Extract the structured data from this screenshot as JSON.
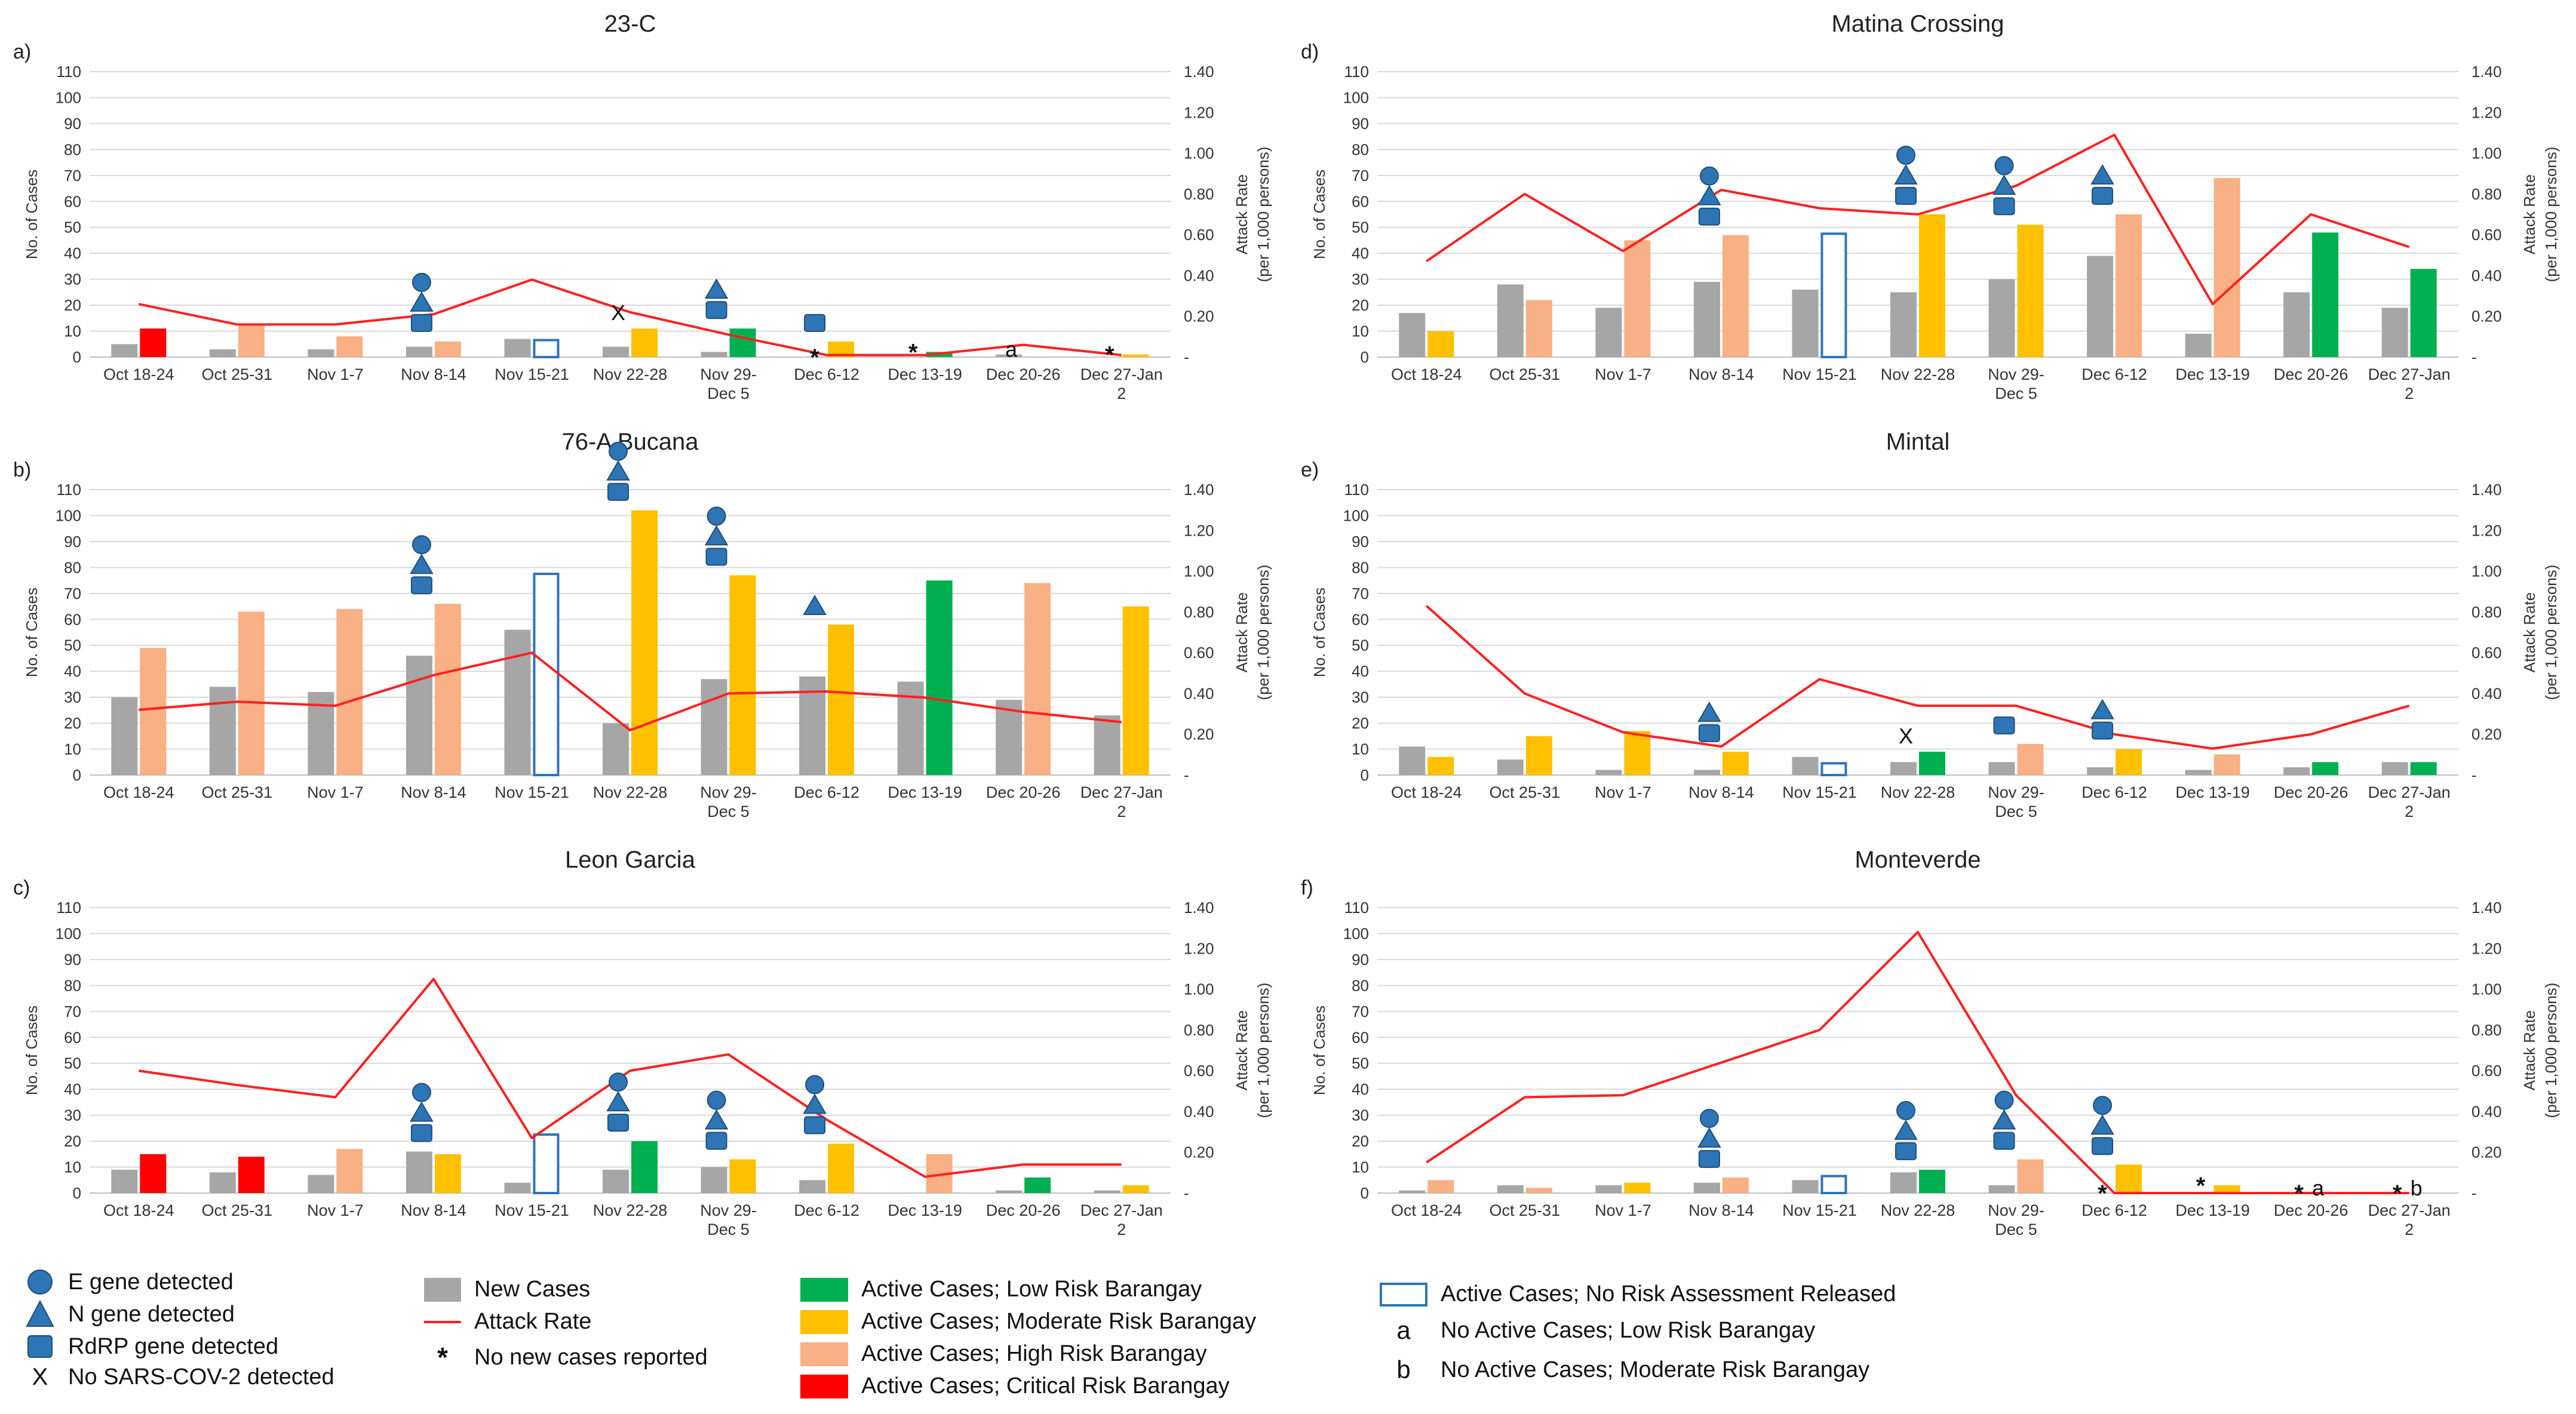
{
  "colors": {
    "new": "#a6a6a6",
    "low": "#00b050",
    "moderate": "#ffc000",
    "high": "#f8b084",
    "critical": "#ff0000",
    "norisk_stroke": "#2e75b6",
    "attack": "#ff2020",
    "marker": "#2e75b6",
    "grid": "#d9d9d9"
  },
  "categories": [
    "Oct 18-24",
    "Oct 25-31",
    "Nov 1-7",
    "Nov 8-14",
    "Nov 15-21",
    "Nov 22-28",
    "Nov 29-Dec 5",
    "Dec 6-12",
    "Dec 13-19",
    "Dec 20-26",
    "Dec 27-Jan 2"
  ],
  "category_lines": [
    [
      "Oct 18-24"
    ],
    [
      "Oct 25-31"
    ],
    [
      "Nov 1-7"
    ],
    [
      "Nov 8-14"
    ],
    [
      "Nov 15-21"
    ],
    [
      "Nov 22-28"
    ],
    [
      "Nov 29-",
      "Dec 5"
    ],
    [
      "Dec 6-12"
    ],
    [
      "Dec 13-19"
    ],
    [
      "Dec 20-26"
    ],
    [
      "Dec 27-Jan",
      "2"
    ]
  ],
  "left_ticks": [
    "0",
    "10",
    "20",
    "30",
    "40",
    "50",
    "60",
    "70",
    "80",
    "90",
    "100",
    "110"
  ],
  "right_ticks": [
    "-",
    "0.20",
    "0.40",
    "0.60",
    "0.80",
    "1.00",
    "1.20",
    "1.40"
  ],
  "y_label": "No. of Cases",
  "y2_label_line1": "Attack Rate",
  "y2_label_line2": "(per 1,000 persons)",
  "chart_data": [
    {
      "type": "bar",
      "panel_label": "a)",
      "title": "23-C",
      "ylim": [
        0,
        110
      ],
      "y2lim": [
        0,
        1.4
      ],
      "new_cases": [
        5,
        3,
        3,
        4,
        7,
        4,
        2,
        0,
        0,
        1,
        0
      ],
      "active": [
        {
          "v": 11,
          "risk": "critical"
        },
        {
          "v": 13,
          "risk": "high"
        },
        {
          "v": 8,
          "risk": "high"
        },
        {
          "v": 6,
          "risk": "high"
        },
        {
          "v": 7,
          "risk": "norisk"
        },
        {
          "v": 11,
          "risk": "moderate"
        },
        {
          "v": 11,
          "risk": "low"
        },
        {
          "v": 6,
          "risk": "moderate"
        },
        {
          "v": 2,
          "risk": "low"
        },
        {
          "v": 0,
          "risk": "none"
        },
        {
          "v": 1,
          "risk": "moderate"
        }
      ],
      "attack_rate": [
        0.26,
        0.16,
        0.16,
        0.21,
        0.38,
        0.22,
        0.11,
        0.01,
        0.01,
        0.06,
        0.01
      ],
      "markers": [
        [],
        [],
        [],
        [
          "E",
          "N",
          "R"
        ],
        [],
        [
          "X"
        ],
        [
          "N",
          "R"
        ],
        [
          "R",
          "*"
        ],
        [
          "*"
        ],
        [
          "a"
        ],
        [
          "*"
        ]
      ]
    },
    {
      "type": "bar",
      "panel_label": "b)",
      "title": "76-A Bucana",
      "ylim": [
        0,
        110
      ],
      "y2lim": [
        0,
        1.4
      ],
      "new_cases": [
        30,
        34,
        32,
        46,
        56,
        20,
        37,
        38,
        36,
        29,
        23
      ],
      "active": [
        {
          "v": 49,
          "risk": "high"
        },
        {
          "v": 63,
          "risk": "high"
        },
        {
          "v": 64,
          "risk": "high"
        },
        {
          "v": 66,
          "risk": "high"
        },
        {
          "v": 78,
          "risk": "norisk"
        },
        {
          "v": 102,
          "risk": "moderate"
        },
        {
          "v": 77,
          "risk": "moderate"
        },
        {
          "v": 58,
          "risk": "moderate"
        },
        {
          "v": 75,
          "risk": "low"
        },
        {
          "v": 74,
          "risk": "high"
        },
        {
          "v": 65,
          "risk": "moderate"
        }
      ],
      "attack_rate": [
        0.32,
        0.36,
        0.34,
        0.49,
        0.6,
        0.22,
        0.4,
        0.41,
        0.38,
        0.31,
        0.26
      ],
      "markers": [
        [],
        [],
        [],
        [
          "E",
          "N",
          "R"
        ],
        [],
        [
          "E",
          "N",
          "R"
        ],
        [
          "E",
          "N",
          "R"
        ],
        [
          "N"
        ],
        [],
        [],
        []
      ]
    },
    {
      "type": "bar",
      "panel_label": "c)",
      "title": "Leon Garcia",
      "ylim": [
        0,
        110
      ],
      "y2lim": [
        0,
        1.4
      ],
      "new_cases": [
        9,
        8,
        7,
        16,
        4,
        9,
        10,
        5,
        0,
        1,
        1
      ],
      "active": [
        {
          "v": 15,
          "risk": "critical"
        },
        {
          "v": 14,
          "risk": "critical"
        },
        {
          "v": 17,
          "risk": "high"
        },
        {
          "v": 15,
          "risk": "moderate"
        },
        {
          "v": 23,
          "risk": "norisk"
        },
        {
          "v": 20,
          "risk": "low"
        },
        {
          "v": 13,
          "risk": "moderate"
        },
        {
          "v": 19,
          "risk": "moderate"
        },
        {
          "v": 15,
          "risk": "high"
        },
        {
          "v": 6,
          "risk": "low"
        },
        {
          "v": 3,
          "risk": "moderate"
        }
      ],
      "attack_rate": [
        0.6,
        0.53,
        0.47,
        1.05,
        0.27,
        0.6,
        0.68,
        0.36,
        0.08,
        0.14,
        0.14
      ],
      "markers": [
        [],
        [],
        [],
        [
          "E",
          "N",
          "R"
        ],
        [],
        [
          "E",
          "N",
          "R"
        ],
        [
          "E",
          "N",
          "R"
        ],
        [
          "E",
          "N",
          "R"
        ],
        [],
        [],
        []
      ]
    },
    {
      "type": "bar",
      "panel_label": "d)",
      "title": "Matina Crossing",
      "ylim": [
        0,
        110
      ],
      "y2lim": [
        0,
        1.4
      ],
      "new_cases": [
        17,
        28,
        19,
        29,
        26,
        25,
        30,
        39,
        9,
        25,
        19
      ],
      "active": [
        {
          "v": 10,
          "risk": "moderate"
        },
        {
          "v": 22,
          "risk": "high"
        },
        {
          "v": 45,
          "risk": "high"
        },
        {
          "v": 47,
          "risk": "high"
        },
        {
          "v": 48,
          "risk": "norisk"
        },
        {
          "v": 55,
          "risk": "moderate"
        },
        {
          "v": 51,
          "risk": "moderate"
        },
        {
          "v": 55,
          "risk": "high"
        },
        {
          "v": 69,
          "risk": "high"
        },
        {
          "v": 48,
          "risk": "low"
        },
        {
          "v": 34,
          "risk": "low"
        }
      ],
      "attack_rate": [
        0.47,
        0.8,
        0.52,
        0.82,
        0.73,
        0.7,
        0.84,
        1.09,
        0.26,
        0.7,
        0.54
      ],
      "markers": [
        [],
        [],
        [],
        [
          "E",
          "N",
          "R"
        ],
        [],
        [
          "E",
          "N",
          "R"
        ],
        [
          "E",
          "N",
          "R"
        ],
        [
          "N",
          "R"
        ],
        [],
        [],
        []
      ]
    },
    {
      "type": "bar",
      "panel_label": "e)",
      "title": "Mintal",
      "ylim": [
        0,
        110
      ],
      "y2lim": [
        0,
        1.4
      ],
      "new_cases": [
        11,
        6,
        2,
        2,
        7,
        5,
        5,
        3,
        2,
        3,
        5
      ],
      "active": [
        {
          "v": 7,
          "risk": "moderate"
        },
        {
          "v": 15,
          "risk": "moderate"
        },
        {
          "v": 17,
          "risk": "moderate"
        },
        {
          "v": 9,
          "risk": "moderate"
        },
        {
          "v": 5,
          "risk": "norisk"
        },
        {
          "v": 9,
          "risk": "low"
        },
        {
          "v": 12,
          "risk": "high"
        },
        {
          "v": 10,
          "risk": "moderate"
        },
        {
          "v": 8,
          "risk": "high"
        },
        {
          "v": 5,
          "risk": "low"
        },
        {
          "v": 5,
          "risk": "low"
        }
      ],
      "attack_rate": [
        0.83,
        0.4,
        0.21,
        0.14,
        0.47,
        0.34,
        0.34,
        0.2,
        0.13,
        0.2,
        0.34
      ],
      "markers": [
        [],
        [],
        [],
        [
          "N",
          "R"
        ],
        [],
        [
          "X"
        ],
        [
          "R"
        ],
        [
          "N",
          "R"
        ],
        [],
        [],
        []
      ]
    },
    {
      "type": "bar",
      "panel_label": "f)",
      "title": "Monteverde",
      "ylim": [
        0,
        110
      ],
      "y2lim": [
        0,
        1.4
      ],
      "new_cases": [
        1,
        3,
        3,
        4,
        5,
        8,
        3,
        0,
        0,
        0,
        0
      ],
      "active": [
        {
          "v": 5,
          "risk": "high"
        },
        {
          "v": 2,
          "risk": "high"
        },
        {
          "v": 4,
          "risk": "moderate"
        },
        {
          "v": 6,
          "risk": "high"
        },
        {
          "v": 7,
          "risk": "norisk"
        },
        {
          "v": 9,
          "risk": "low"
        },
        {
          "v": 13,
          "risk": "high"
        },
        {
          "v": 11,
          "risk": "moderate"
        },
        {
          "v": 3,
          "risk": "moderate"
        },
        {
          "v": 0,
          "risk": "none"
        },
        {
          "v": 0,
          "risk": "none"
        }
      ],
      "attack_rate": [
        0.15,
        0.47,
        0.48,
        0.64,
        0.8,
        1.28,
        0.48,
        0.0,
        0.0,
        0.0,
        0.0
      ],
      "markers": [
        [],
        [],
        [],
        [
          "E",
          "N",
          "R"
        ],
        [],
        [
          "E",
          "N",
          "R"
        ],
        [
          "E",
          "N",
          "R"
        ],
        [
          "E",
          "N",
          "R",
          "*"
        ],
        [
          "*"
        ],
        [
          "*",
          "a"
        ],
        [
          "*",
          "b"
        ]
      ]
    }
  ],
  "legend": {
    "e_gene": "E gene detected",
    "n_gene": "N gene detected",
    "rdrp_gene": "RdRP gene detected",
    "no_sars": "No SARS-COV-2 detected",
    "no_sars_symbol": "X",
    "new_cases": "New Cases",
    "attack_rate": "Attack Rate",
    "no_new_cases": "No new cases reported",
    "no_new_cases_symbol": "*",
    "low": "Active Cases; Low Risk Barangay",
    "moderate": "Active Cases; Moderate Risk Barangay",
    "high": "Active Cases; High Risk Barangay",
    "critical": "Active Cases; Critical Risk Barangay",
    "norisk": "Active Cases; No Risk Assessment Released",
    "a_symbol": "a",
    "a_text": "No Active Cases; Low Risk Barangay",
    "b_symbol": "b",
    "b_text": "No Active Cases; Moderate Risk Barangay"
  }
}
